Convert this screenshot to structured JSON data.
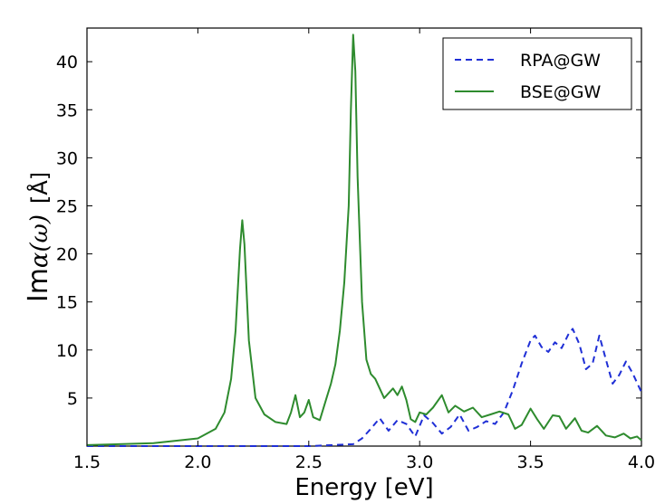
{
  "chart_data": {
    "type": "line",
    "title": "",
    "xlabel": "Energy [eV]",
    "ylabel_prefix": "Im",
    "ylabel_symbol": "α(ω)",
    "ylabel_unit": "[Å]",
    "xlim": [
      1.5,
      4.0
    ],
    "ylim": [
      0,
      43.5
    ],
    "xticks": [
      1.5,
      2.0,
      2.5,
      3.0,
      3.5,
      4.0
    ],
    "xtick_labels": [
      "1.5",
      "2.0",
      "2.5",
      "3.0",
      "3.5",
      "4.0"
    ],
    "yticks": [
      5,
      10,
      15,
      20,
      25,
      30,
      35,
      40
    ],
    "ytick_labels": [
      "5",
      "10",
      "15",
      "20",
      "25",
      "30",
      "35",
      "40"
    ],
    "grid": false,
    "legend_position": "top-right",
    "series": [
      {
        "name": "RPA@GW",
        "color": "#1f2fd6",
        "style": "dashed",
        "x": [
          1.5,
          2.0,
          2.5,
          2.7,
          2.74,
          2.78,
          2.82,
          2.86,
          2.9,
          2.94,
          2.98,
          3.02,
          3.06,
          3.1,
          3.14,
          3.18,
          3.22,
          3.26,
          3.3,
          3.34,
          3.38,
          3.42,
          3.46,
          3.5,
          3.52,
          3.55,
          3.58,
          3.61,
          3.64,
          3.67,
          3.69,
          3.72,
          3.75,
          3.78,
          3.81,
          3.84,
          3.87,
          3.9,
          3.93,
          3.96,
          4.0
        ],
        "y": [
          0.0,
          0.0,
          0.0,
          0.2,
          0.8,
          1.8,
          2.9,
          1.6,
          2.7,
          2.3,
          1.0,
          3.2,
          2.4,
          1.3,
          2.0,
          3.3,
          1.6,
          2.0,
          2.6,
          2.3,
          3.5,
          5.8,
          8.6,
          11.0,
          11.5,
          10.3,
          9.8,
          10.8,
          10.2,
          11.6,
          12.2,
          10.6,
          8.0,
          8.6,
          11.5,
          9.0,
          6.5,
          7.4,
          8.8,
          7.6,
          5.6
        ]
      },
      {
        "name": "BSE@GW",
        "color": "#2e8b2e",
        "style": "solid",
        "x": [
          1.5,
          1.8,
          2.0,
          2.08,
          2.12,
          2.15,
          2.17,
          2.19,
          2.2,
          2.21,
          2.23,
          2.26,
          2.3,
          2.35,
          2.4,
          2.42,
          2.44,
          2.46,
          2.48,
          2.5,
          2.52,
          2.55,
          2.58,
          2.6,
          2.62,
          2.64,
          2.66,
          2.68,
          2.69,
          2.7,
          2.71,
          2.72,
          2.74,
          2.76,
          2.78,
          2.8,
          2.82,
          2.84,
          2.86,
          2.88,
          2.9,
          2.92,
          2.94,
          2.96,
          2.98,
          3.0,
          3.03,
          3.06,
          3.1,
          3.13,
          3.16,
          3.2,
          3.24,
          3.28,
          3.32,
          3.36,
          3.4,
          3.43,
          3.46,
          3.5,
          3.53,
          3.56,
          3.6,
          3.63,
          3.66,
          3.7,
          3.73,
          3.76,
          3.8,
          3.84,
          3.88,
          3.92,
          3.95,
          3.98,
          4.0
        ],
        "y": [
          0.1,
          0.3,
          0.8,
          1.8,
          3.5,
          7.0,
          12.0,
          20.5,
          23.5,
          21.0,
          11.0,
          5.0,
          3.3,
          2.5,
          2.3,
          3.5,
          5.3,
          3.0,
          3.5,
          4.8,
          3.0,
          2.7,
          5.0,
          6.5,
          8.5,
          12.0,
          17.0,
          25.0,
          35.0,
          42.8,
          39.0,
          28.0,
          15.0,
          9.0,
          7.5,
          7.0,
          6.0,
          5.0,
          5.5,
          6.0,
          5.3,
          6.2,
          4.8,
          2.8,
          2.5,
          3.5,
          3.3,
          4.0,
          5.3,
          3.5,
          4.2,
          3.6,
          4.0,
          3.0,
          3.3,
          3.6,
          3.3,
          1.8,
          2.2,
          3.9,
          2.8,
          1.8,
          3.2,
          3.1,
          1.8,
          2.9,
          1.6,
          1.4,
          2.1,
          1.1,
          0.9,
          1.3,
          0.8,
          1.0,
          0.6
        ]
      }
    ]
  }
}
